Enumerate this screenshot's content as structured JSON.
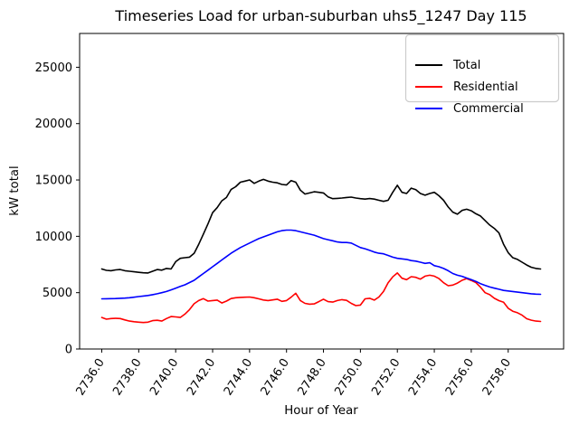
{
  "chart_data": {
    "type": "line",
    "title": "Timeseries Load for urban-suburban uhs5_1247  Day 115",
    "xlabel": "Hour of Year",
    "ylabel": "kW total",
    "xlim": [
      2734.8,
      2761.0
    ],
    "ylim": [
      0,
      28000
    ],
    "grid": false,
    "background": "#ffffff",
    "xticks": {
      "values": [
        2736,
        2738,
        2740,
        2742,
        2744,
        2746,
        2748,
        2750,
        2752,
        2754,
        2756,
        2758
      ],
      "labels": [
        "2736.0",
        "2738.0",
        "2740.0",
        "2742.0",
        "2744.0",
        "2746.0",
        "2748.0",
        "2750.0",
        "2752.0",
        "2754.0",
        "2756.0",
        "2758.0"
      ],
      "rotation_deg": 57
    },
    "yticks": {
      "values": [
        0,
        5000,
        10000,
        15000,
        20000,
        25000
      ],
      "labels": [
        "0",
        "5000",
        "10000",
        "15000",
        "20000",
        "25000"
      ]
    },
    "legend": {
      "position": "upper-right",
      "entries": [
        "Total",
        "Residential",
        "Commercial"
      ],
      "border_color": "#cccccc",
      "background": "#ffffff"
    },
    "x": [
      2736.0,
      2736.25,
      2736.5,
      2736.75,
      2737.0,
      2737.25,
      2737.5,
      2737.75,
      2738.0,
      2738.25,
      2738.5,
      2738.75,
      2739.0,
      2739.25,
      2739.5,
      2739.75,
      2740.0,
      2740.25,
      2740.5,
      2740.75,
      2741.0,
      2741.25,
      2741.5,
      2741.75,
      2742.0,
      2742.25,
      2742.5,
      2742.75,
      2743.0,
      2743.25,
      2743.5,
      2743.75,
      2744.0,
      2744.25,
      2744.5,
      2744.75,
      2745.0,
      2745.25,
      2745.5,
      2745.75,
      2746.0,
      2746.25,
      2746.5,
      2746.75,
      2747.0,
      2747.25,
      2747.5,
      2747.75,
      2748.0,
      2748.25,
      2748.5,
      2748.75,
      2749.0,
      2749.25,
      2749.5,
      2749.75,
      2750.0,
      2750.25,
      2750.5,
      2750.75,
      2751.0,
      2751.25,
      2751.5,
      2751.75,
      2752.0,
      2752.25,
      2752.5,
      2752.75,
      2753.0,
      2753.25,
      2753.5,
      2753.75,
      2754.0,
      2754.25,
      2754.5,
      2754.75,
      2755.0,
      2755.25,
      2755.5,
      2755.75,
      2756.0,
      2756.25,
      2756.5,
      2756.75,
      2757.0,
      2757.25,
      2757.5,
      2757.75,
      2758.0,
      2758.25,
      2758.5,
      2758.75,
      2759.0,
      2759.25,
      2759.5,
      2759.75
    ],
    "series": [
      {
        "name": "Total",
        "color": "#000000",
        "values": [
          7100,
          6980,
          6950,
          7020,
          7050,
          6950,
          6900,
          6850,
          6800,
          6760,
          6750,
          6900,
          7050,
          7000,
          7150,
          7100,
          7750,
          8050,
          8100,
          8150,
          8500,
          9300,
          10200,
          11100,
          12100,
          12550,
          13150,
          13450,
          14150,
          14400,
          14800,
          14900,
          15000,
          14700,
          14900,
          15050,
          14900,
          14800,
          14750,
          14600,
          14550,
          14950,
          14800,
          14100,
          13750,
          13850,
          13950,
          13900,
          13850,
          13500,
          13340,
          13370,
          13400,
          13450,
          13480,
          13400,
          13340,
          13300,
          13350,
          13300,
          13200,
          13100,
          13200,
          13900,
          14530,
          13900,
          13800,
          14270,
          14140,
          13800,
          13650,
          13800,
          13900,
          13600,
          13200,
          12600,
          12150,
          11960,
          12300,
          12400,
          12270,
          12000,
          11800,
          11400,
          11000,
          10700,
          10300,
          9300,
          8550,
          8100,
          7950,
          7700,
          7450,
          7250,
          7150,
          7100
        ]
      },
      {
        "name": "Residential",
        "color": "#ff0000",
        "values": [
          2800,
          2650,
          2700,
          2720,
          2700,
          2580,
          2480,
          2420,
          2380,
          2350,
          2380,
          2520,
          2550,
          2480,
          2700,
          2880,
          2850,
          2800,
          3100,
          3500,
          4020,
          4300,
          4470,
          4250,
          4300,
          4340,
          4080,
          4250,
          4480,
          4550,
          4580,
          4600,
          4610,
          4550,
          4450,
          4350,
          4300,
          4360,
          4420,
          4230,
          4300,
          4600,
          4950,
          4300,
          4050,
          3980,
          4000,
          4200,
          4420,
          4200,
          4160,
          4300,
          4380,
          4320,
          4050,
          3850,
          3900,
          4450,
          4500,
          4340,
          4610,
          5100,
          5880,
          6400,
          6750,
          6280,
          6150,
          6420,
          6360,
          6200,
          6470,
          6550,
          6470,
          6250,
          5880,
          5620,
          5670,
          5850,
          6100,
          6250,
          6080,
          5900,
          5490,
          5000,
          4820,
          4500,
          4290,
          4150,
          3620,
          3350,
          3220,
          3000,
          2690,
          2560,
          2480,
          2450
        ]
      },
      {
        "name": "Commercial",
        "color": "#0000ff",
        "values": [
          4450,
          4460,
          4470,
          4480,
          4500,
          4520,
          4550,
          4600,
          4650,
          4700,
          4750,
          4820,
          4900,
          5000,
          5100,
          5250,
          5400,
          5550,
          5700,
          5900,
          6100,
          6400,
          6700,
          7000,
          7300,
          7600,
          7900,
          8200,
          8500,
          8750,
          9000,
          9200,
          9400,
          9600,
          9800,
          9950,
          10100,
          10250,
          10400,
          10500,
          10550,
          10550,
          10500,
          10400,
          10300,
          10200,
          10100,
          9950,
          9800,
          9700,
          9600,
          9500,
          9450,
          9450,
          9400,
          9200,
          9000,
          8900,
          8750,
          8600,
          8500,
          8450,
          8300,
          8150,
          8050,
          8000,
          7950,
          7850,
          7800,
          7700,
          7600,
          7650,
          7400,
          7300,
          7150,
          6950,
          6700,
          6550,
          6450,
          6300,
          6150,
          6000,
          5800,
          5650,
          5500,
          5400,
          5300,
          5200,
          5150,
          5100,
          5050,
          5000,
          4950,
          4900,
          4870,
          4850
        ]
      }
    ]
  }
}
